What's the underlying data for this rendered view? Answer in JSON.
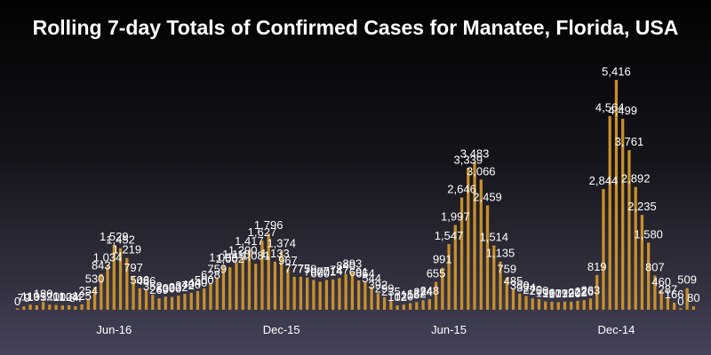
{
  "chart_data": {
    "type": "bar",
    "title": "Rolling 7-day Totals of Confirmed Cases for Manatee, Florida, USA",
    "xlabel": "",
    "ylabel": "",
    "ylim": [
      0,
      5416
    ],
    "bar_color": "#c9902a",
    "tick_labels": [
      {
        "label": "Jun-16",
        "index": 15
      },
      {
        "label": "Dec-15",
        "index": 41
      },
      {
        "label": "Jun-15",
        "index": 67
      },
      {
        "label": "Dec-14",
        "index": 93
      }
    ],
    "values": [
      0,
      79,
      119,
      105,
      180,
      120,
      111,
      102,
      104,
      84,
      125,
      254,
      530,
      843,
      1034,
      1529,
      1452,
      1219,
      797,
      506,
      486,
      352,
      269,
      309,
      300,
      332,
      372,
      400,
      440,
      500,
      628,
      759,
      1035,
      1002,
      1110,
      1200,
      1417,
      1081,
      1627,
      1796,
      1133,
      1374,
      967,
      777,
      777,
      759,
      700,
      660,
      701,
      714,
      747,
      840,
      893,
      691,
      664,
      544,
      392,
      299,
      235,
      102,
      120,
      155,
      182,
      224,
      248,
      655,
      991,
      1547,
      1997,
      2646,
      3339,
      3483,
      3066,
      2459,
      1514,
      1135,
      759,
      485,
      380,
      324,
      270,
      250,
      196,
      190,
      177,
      192,
      190,
      212,
      226,
      263,
      819,
      2844,
      4564,
      5416,
      4499,
      3761,
      2892,
      2235,
      1580,
      807,
      460,
      287,
      166,
      0,
      509,
      80
    ]
  }
}
